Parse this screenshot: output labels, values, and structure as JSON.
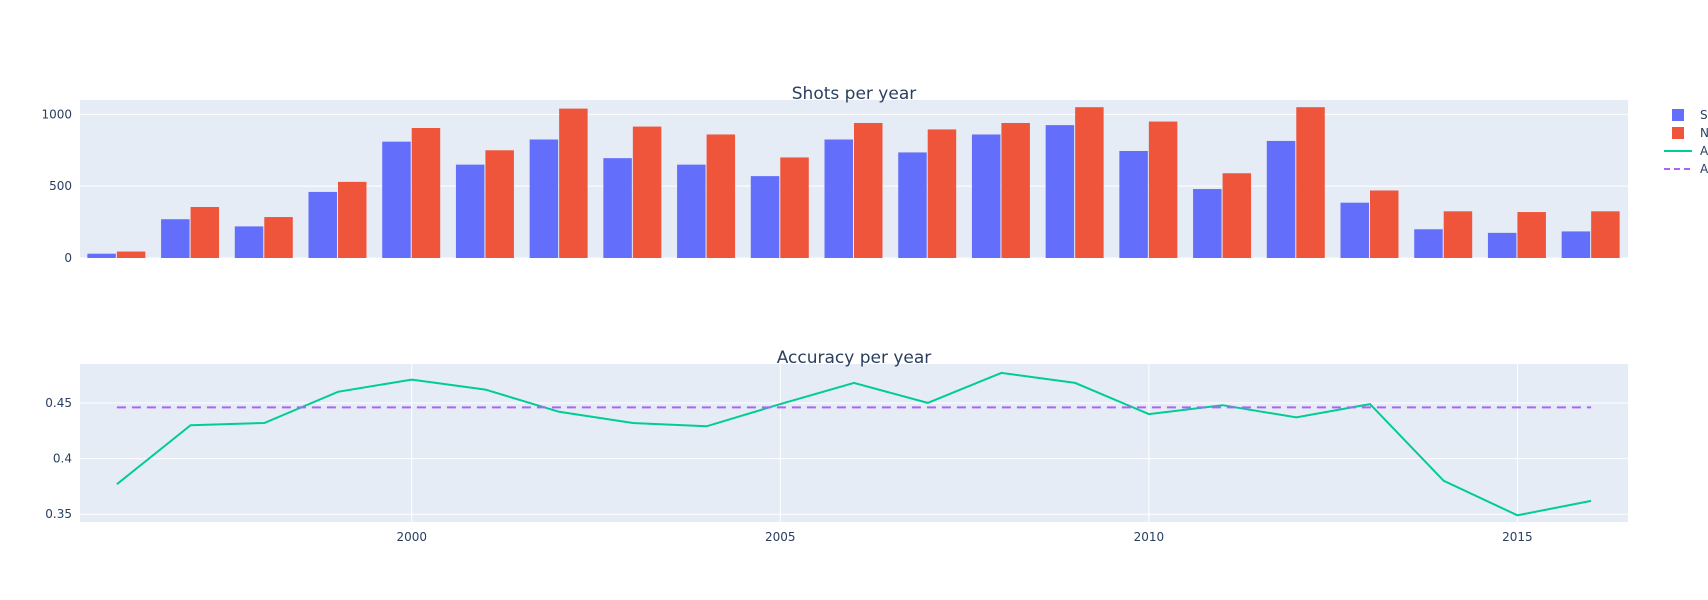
{
  "chart_data": [
    {
      "type": "bar",
      "title": "Shots per year",
      "x": [
        1996,
        1997,
        1998,
        1999,
        2000,
        2001,
        2002,
        2003,
        2004,
        2005,
        2006,
        2007,
        2008,
        2009,
        2010,
        2011,
        2012,
        2013,
        2014,
        2015,
        2016
      ],
      "series": [
        {
          "name": "S",
          "color": "#636efa",
          "values": [
            30,
            270,
            220,
            460,
            810,
            650,
            825,
            695,
            650,
            570,
            825,
            735,
            860,
            925,
            745,
            480,
            815,
            385,
            200,
            175,
            185
          ]
        },
        {
          "name": "N",
          "color": "#ef553b",
          "values": [
            45,
            355,
            285,
            530,
            905,
            750,
            1040,
            915,
            860,
            700,
            940,
            895,
            940,
            1050,
            950,
            590,
            1050,
            470,
            325,
            320,
            325
          ]
        }
      ],
      "ylim": [
        0,
        1100
      ],
      "yticks": [
        0,
        500,
        1000
      ],
      "ytick_labels": [
        "0",
        "500",
        "1000"
      ],
      "grid": true
    },
    {
      "type": "line",
      "title": "Accuracy per year",
      "x": [
        1996,
        1997,
        1998,
        1999,
        2000,
        2001,
        2002,
        2003,
        2004,
        2005,
        2006,
        2007,
        2008,
        2009,
        2010,
        2011,
        2012,
        2013,
        2014,
        2015,
        2016
      ],
      "series": [
        {
          "name": "A",
          "color": "#00cc96",
          "dash": "solid",
          "values": [
            0.377,
            0.43,
            0.432,
            0.46,
            0.471,
            0.462,
            0.442,
            0.432,
            0.429,
            0.449,
            0.468,
            0.45,
            0.477,
            0.468,
            0.44,
            0.448,
            0.437,
            0.449,
            0.38,
            0.349,
            0.362
          ]
        },
        {
          "name": "A",
          "color": "#ab63fa",
          "dash": "dash",
          "values": [
            0.446,
            0.446,
            0.446,
            0.446,
            0.446,
            0.446,
            0.446,
            0.446,
            0.446,
            0.446,
            0.446,
            0.446,
            0.446,
            0.446,
            0.446,
            0.446,
            0.446,
            0.446,
            0.446,
            0.446,
            0.446
          ]
        }
      ],
      "xlim": [
        1995.5,
        2016.5
      ],
      "ylim": [
        0.343,
        0.485
      ],
      "xticks": [
        2000,
        2005,
        2010,
        2015
      ],
      "xtick_labels": [
        "2000",
        "2005",
        "2010",
        "2015"
      ],
      "yticks": [
        0.35,
        0.4,
        0.45
      ],
      "ytick_labels": [
        "0.35",
        "0.4",
        "0.45"
      ],
      "grid": true
    }
  ],
  "legend": {
    "placement": "top-right",
    "items": [
      {
        "label": "S",
        "color": "#636efa",
        "kind": "bar"
      },
      {
        "label": "N",
        "color": "#ef553b",
        "kind": "bar"
      },
      {
        "label": "A",
        "color": "#00cc96",
        "kind": "line"
      },
      {
        "label": "A",
        "color": "#ab63fa",
        "kind": "dash"
      }
    ]
  },
  "colors": {
    "plot_bg": "#e5ecf6",
    "grid": "#ffffff",
    "text": "#2a3f5f"
  }
}
